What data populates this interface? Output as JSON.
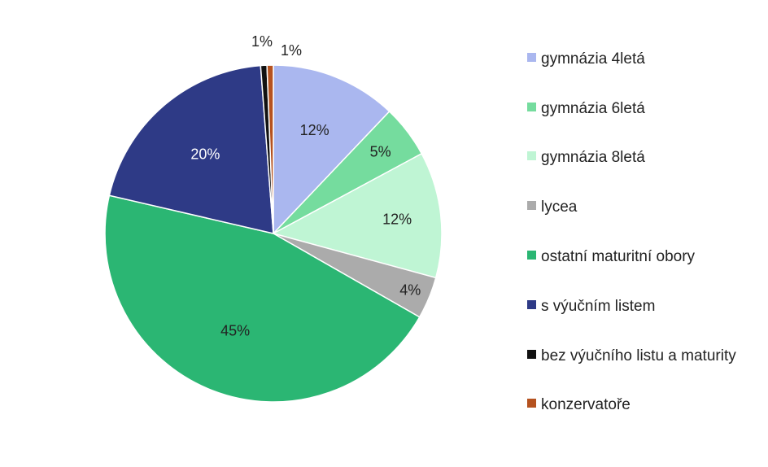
{
  "chart_data": {
    "type": "pie",
    "title": "",
    "legend_position": "right",
    "slices": [
      {
        "name": "gymnázia 4letá",
        "value": 12,
        "label": "12%",
        "color": "#aab7ef",
        "label_color": "#222222"
      },
      {
        "name": "gymnázia 6letá",
        "value": 5,
        "label": "5%",
        "color": "#75dc9e",
        "label_color": "#222222"
      },
      {
        "name": "gymnázia 8letá",
        "value": 12,
        "label": "12%",
        "color": "#bff5d4",
        "label_color": "#222222"
      },
      {
        "name": "lycea",
        "value": 4,
        "label": "4%",
        "color": "#ababab",
        "label_color": "#222222"
      },
      {
        "name": "ostatní maturitní obory",
        "value": 45,
        "label": "45%",
        "color": "#2bb673",
        "label_color": "#222222"
      },
      {
        "name": "s výučním listem",
        "value": 20,
        "label": "20%",
        "color": "#2e3a86",
        "label_color": "#ffffff"
      },
      {
        "name": "bez výučního listu a maturity",
        "value": 0.6,
        "label": "1%",
        "color": "#111111",
        "label_color": "#222222"
      },
      {
        "name": "konzervatoře",
        "value": 0.6,
        "label": "1%",
        "color": "#b5521f",
        "label_color": "#222222"
      }
    ]
  }
}
